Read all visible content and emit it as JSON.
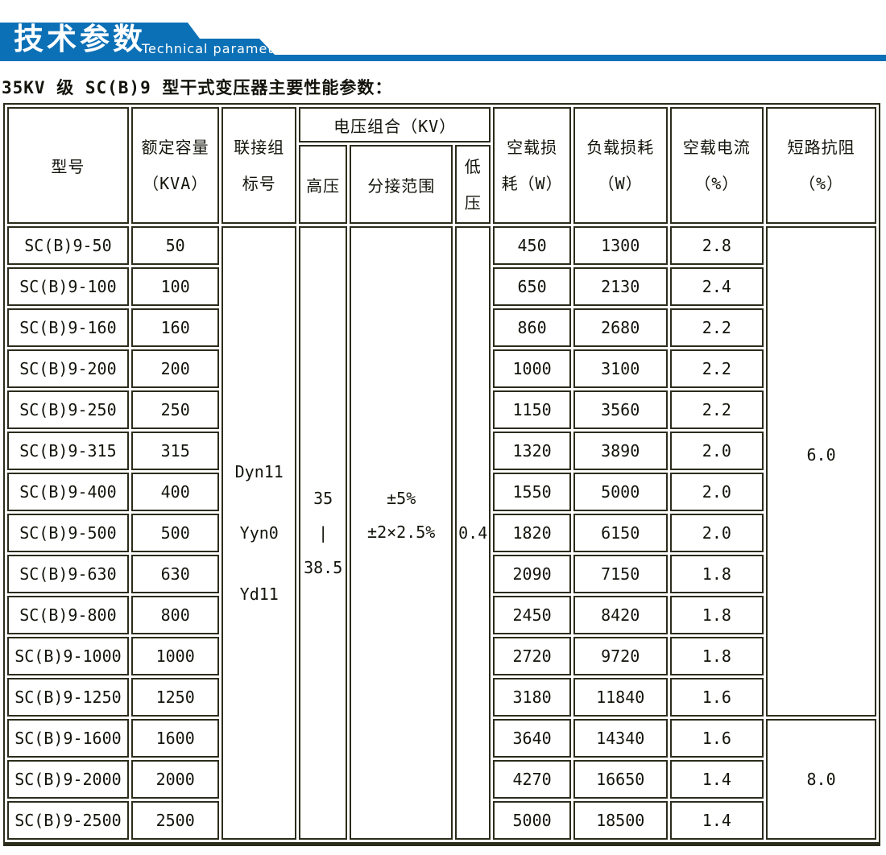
{
  "banner": {
    "title_cn": "技术参数",
    "title_en": "Technical parameter",
    "color": "#0c70b6"
  },
  "page_title": "35KV 级 SC(B)9 型干式变压器主要性能参数：",
  "table": {
    "headers": {
      "model": "型号",
      "capacity_l1": "额定容量",
      "capacity_l2": "（KVA）",
      "connection_l1": "联接组",
      "connection_l2": "标号",
      "voltage_combo": "电压组合（KV）",
      "hv": "高压",
      "tap": "分接范围",
      "lv_l1": "低",
      "lv_l2": "压",
      "no_load_loss_l1": "空载损",
      "no_load_loss_l2": "耗（W）",
      "load_loss_l1": "负载损耗",
      "load_loss_l2": "（W）",
      "no_load_current_l1": "空载电流",
      "no_load_current_l2": "（%）",
      "impedance_l1": "短路抗阻",
      "impedance_l2": "（%）"
    },
    "merged": {
      "connection_group": [
        "Dyn11",
        "Yyn0",
        "Yd11"
      ],
      "high_voltage": [
        "35",
        "|",
        "38.5"
      ],
      "tap_range": [
        "±5%",
        "±2×2.5%"
      ],
      "low_voltage": "0.4",
      "impedance": [
        {
          "value": "6.0",
          "rows": 12
        },
        {
          "value": "8.0",
          "rows": 3
        }
      ]
    },
    "rows": [
      {
        "model": "SC(B)9-50",
        "capacity": "50",
        "no_load_loss": "450",
        "load_loss": "1300",
        "no_load_current": "2.8"
      },
      {
        "model": "SC(B)9-100",
        "capacity": "100",
        "no_load_loss": "650",
        "load_loss": "2130",
        "no_load_current": "2.4"
      },
      {
        "model": "SC(B)9-160",
        "capacity": "160",
        "no_load_loss": "860",
        "load_loss": "2680",
        "no_load_current": "2.2"
      },
      {
        "model": "SC(B)9-200",
        "capacity": "200",
        "no_load_loss": "1000",
        "load_loss": "3100",
        "no_load_current": "2.2"
      },
      {
        "model": "SC(B)9-250",
        "capacity": "250",
        "no_load_loss": "1150",
        "load_loss": "3560",
        "no_load_current": "2.2"
      },
      {
        "model": "SC(B)9-315",
        "capacity": "315",
        "no_load_loss": "1320",
        "load_loss": "3890",
        "no_load_current": "2.0"
      },
      {
        "model": "SC(B)9-400",
        "capacity": "400",
        "no_load_loss": "1550",
        "load_loss": "5000",
        "no_load_current": "2.0"
      },
      {
        "model": "SC(B)9-500",
        "capacity": "500",
        "no_load_loss": "1820",
        "load_loss": "6150",
        "no_load_current": "2.0"
      },
      {
        "model": "SC(B)9-630",
        "capacity": "630",
        "no_load_loss": "2090",
        "load_loss": "7150",
        "no_load_current": "1.8"
      },
      {
        "model": "SC(B)9-800",
        "capacity": "800",
        "no_load_loss": "2450",
        "load_loss": "8420",
        "no_load_current": "1.8"
      },
      {
        "model": "SC(B)9-1000",
        "capacity": "1000",
        "no_load_loss": "2720",
        "load_loss": "9720",
        "no_load_current": "1.8"
      },
      {
        "model": "SC(B)9-1250",
        "capacity": "1250",
        "no_load_loss": "3180",
        "load_loss": "11840",
        "no_load_current": "1.6"
      },
      {
        "model": "SC(B)9-1600",
        "capacity": "1600",
        "no_load_loss": "3640",
        "load_loss": "14340",
        "no_load_current": "1.6"
      },
      {
        "model": "SC(B)9-2000",
        "capacity": "2000",
        "no_load_loss": "4270",
        "load_loss": "16650",
        "no_load_current": "1.4"
      },
      {
        "model": "SC(B)9-2500",
        "capacity": "2500",
        "no_load_loss": "5000",
        "load_loss": "18500",
        "no_load_current": "1.4"
      }
    ]
  }
}
